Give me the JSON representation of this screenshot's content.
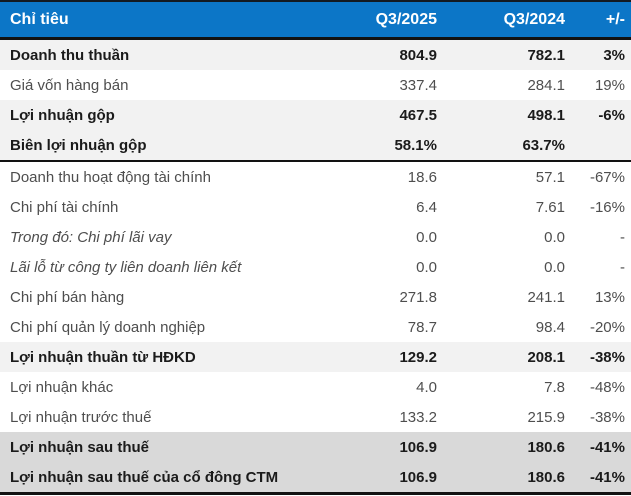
{
  "chart_data": {
    "type": "table",
    "columns": [
      "Chỉ tiêu",
      "Q3/2025",
      "Q3/2024",
      "+/-"
    ],
    "rows": [
      {
        "cells": [
          "Doanh thu thuần",
          "804.9",
          "782.1",
          "3%"
        ],
        "style": "emphasis"
      },
      {
        "cells": [
          "Giá vốn hàng bán",
          "337.4",
          "284.1",
          "19%"
        ],
        "style": "normal"
      },
      {
        "cells": [
          "Lợi nhuận gộp",
          "467.5",
          "498.1",
          "-6%"
        ],
        "style": "emphasis"
      },
      {
        "cells": [
          "Biên lợi nhuận gộp",
          "58.1%",
          "63.7%",
          ""
        ],
        "style": "emphasis",
        "rule_below": true
      },
      {
        "cells": [
          "Doanh thu hoạt động tài chính",
          "18.6",
          "57.1",
          "-67%"
        ],
        "style": "normal"
      },
      {
        "cells": [
          "Chi phí tài chính",
          "6.4",
          "7.61",
          "-16%"
        ],
        "style": "normal"
      },
      {
        "cells": [
          "Trong đó: Chi phí lãi vay",
          "0.0",
          "0.0",
          "-"
        ],
        "style": "italic"
      },
      {
        "cells": [
          "Lãi lỗ từ công ty liên doanh liên kết",
          "0.0",
          "0.0",
          "-"
        ],
        "style": "italic"
      },
      {
        "cells": [
          "Chi phí bán hàng",
          "271.8",
          "241.1",
          "13%"
        ],
        "style": "normal"
      },
      {
        "cells": [
          "Chi phí quản lý doanh nghiệp",
          "78.7",
          "98.4",
          "-20%"
        ],
        "style": "normal"
      },
      {
        "cells": [
          "Lợi nhuận thuần từ HĐKD",
          "129.2",
          "208.1",
          "-38%"
        ],
        "style": "emphasis"
      },
      {
        "cells": [
          "Lợi nhuận khác",
          "4.0",
          "7.8",
          "-48%"
        ],
        "style": "normal"
      },
      {
        "cells": [
          "Lợi nhuận trước thuế",
          "133.2",
          "215.9",
          "-38%"
        ],
        "style": "normal"
      },
      {
        "cells": [
          "Lợi nhuận sau thuế",
          "106.9",
          "180.6",
          "-41%"
        ],
        "style": "total"
      },
      {
        "cells": [
          "Lợi nhuận sau thuế của cổ đông CTM",
          "106.9",
          "180.6",
          "-41%"
        ],
        "style": "total"
      }
    ]
  },
  "colors": {
    "header_bg": "#0c76c7",
    "header_text": "#ffffff",
    "row_emphasis_bg": "#f2f2f2",
    "row_total_bg": "#d9d9d9",
    "text_normal": "#4e4e4e",
    "text_bold": "#1b1b1b",
    "border_dark": "#121212",
    "border_top": "#131a22"
  }
}
